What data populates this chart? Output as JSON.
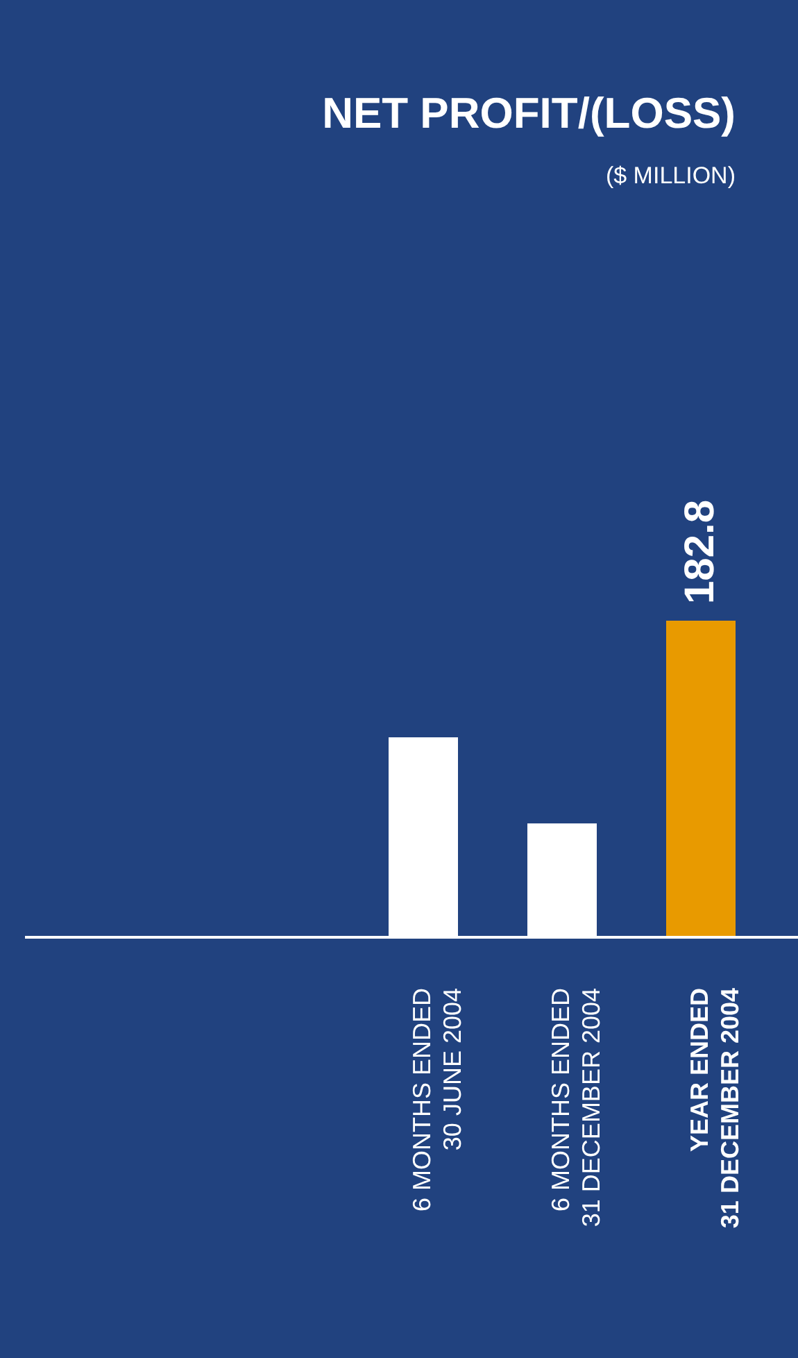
{
  "chart_data": {
    "type": "bar",
    "title": "NET PROFIT/(LOSS)",
    "subtitle": "($ MILLION)",
    "categories": [
      "6 MONTHS ENDED\n30 JUNE 2004",
      "6 MONTHS ENDED\n31 DECEMBER 2004",
      "YEAR ENDED\n31 DECEMBER 2004"
    ],
    "values": [
      115.5,
      65.7,
      182.8
    ],
    "colors": [
      "#ffffff",
      "#ffffff",
      "#e89a00"
    ],
    "value_labels": [
      null,
      null,
      "182.8"
    ],
    "data_labels": false
  }
}
